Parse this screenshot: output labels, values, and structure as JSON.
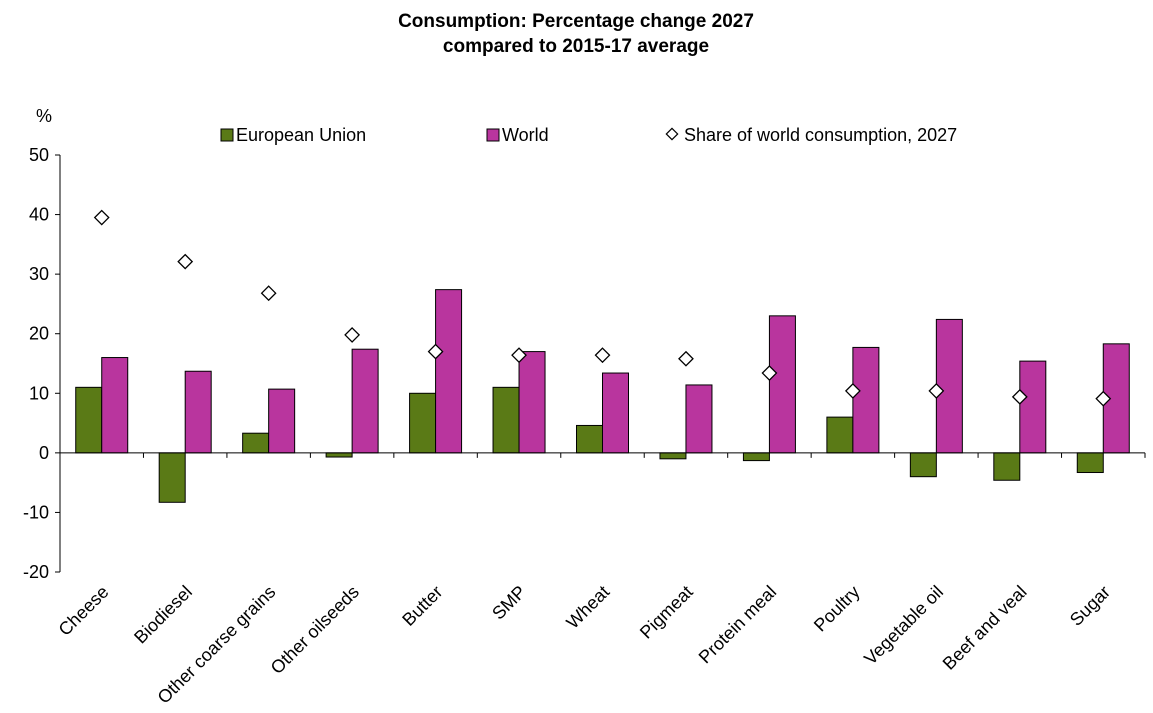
{
  "chart_data": {
    "type": "bar",
    "title_line1": "Consumption: Percentage change 2027",
    "title_line2": "compared to 2015-17 average",
    "ylabel": "%",
    "ylim": [
      -20,
      50
    ],
    "yticks": [
      -20,
      -10,
      0,
      10,
      20,
      30,
      40,
      50
    ],
    "grid": false,
    "legend_position": "top",
    "categories": [
      "Cheese",
      "Biodiesel",
      "Other coarse grains",
      "Other oilseeds",
      "Butter",
      "SMP",
      "Wheat",
      "Pigmeat",
      "Protein meal",
      "Poultry",
      "Vegetable oil",
      "Beef and veal",
      "Sugar"
    ],
    "series": [
      {
        "name": "European Union",
        "kind": "bar",
        "color": "#5a7a16",
        "values": [
          11.0,
          -8.3,
          3.3,
          -0.7,
          10.0,
          11.0,
          4.6,
          -1.0,
          -1.3,
          6.0,
          -4.0,
          -4.6,
          -3.3
        ]
      },
      {
        "name": "World",
        "kind": "bar",
        "color": "#b9359e",
        "values": [
          16.0,
          13.7,
          10.7,
          17.4,
          27.4,
          17.0,
          13.4,
          11.4,
          23.0,
          17.7,
          22.4,
          15.4,
          18.3
        ]
      },
      {
        "name": "Share of world consumption, 2027",
        "kind": "marker",
        "color": "#ffffff",
        "values": [
          39.5,
          32.1,
          26.8,
          19.8,
          17.0,
          16.4,
          16.4,
          15.8,
          13.4,
          10.4,
          10.4,
          9.4,
          9.1
        ]
      }
    ]
  }
}
